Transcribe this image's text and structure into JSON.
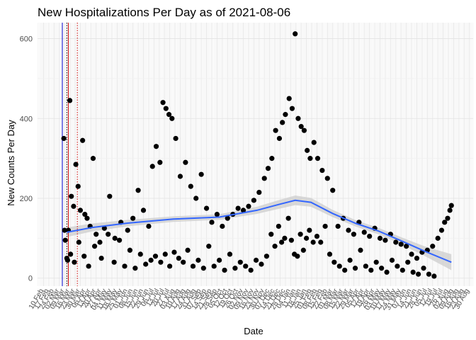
{
  "chart_data": {
    "type": "scatter",
    "title": "New Hospitalizations Per Day as of 2021-08-06",
    "xlabel": "Date",
    "ylabel": "New Counts Per Day",
    "ylim": [
      -20,
      640
    ],
    "y_ticks": [
      0,
      200,
      400,
      600
    ],
    "x_range": [
      "2020-02-02",
      "2021-09-04"
    ],
    "x_tick_labels": [
      "10 Feb",
      "17 Feb",
      "24 Feb",
      "02 Mar",
      "09 Mar",
      "16 Mar",
      "23 Mar",
      "30 Mar",
      "06 Apr",
      "13 Apr",
      "20 Apr",
      "27 Apr",
      "04 May",
      "11 May",
      "18 May",
      "25 May",
      "01 Jun",
      "08 Jun",
      "15 Jun",
      "22 Jun",
      "29 Jun",
      "06 Jul",
      "13 Jul",
      "20 Jul",
      "27 Jul",
      "03 Aug",
      "10 Aug",
      "17 Aug",
      "24 Aug",
      "31 Aug",
      "07 Sep",
      "14 Sep",
      "21 Sep",
      "28 Sep",
      "05 Oct",
      "12 Oct",
      "19 Oct",
      "26 Oct",
      "02 Nov",
      "09 Nov",
      "16 Nov",
      "23 Nov",
      "30 Nov",
      "07 Dec",
      "14 Dec",
      "21 Dec",
      "28 Dec",
      "04 Jan",
      "11 Jan",
      "18 Jan",
      "25 Jan",
      "01 Feb",
      "08 Feb",
      "15 Feb",
      "22 Feb",
      "01 Mar",
      "08 Mar",
      "15 Mar",
      "22 Mar",
      "29 Mar",
      "05 Apr",
      "12 Apr",
      "19 Apr",
      "26 Apr",
      "03 May",
      "10 May",
      "17 May",
      "24 May",
      "31 May",
      "07 Jun",
      "14 Jun",
      "21 Jun",
      "28 Jun",
      "05 Jul",
      "12 Jul",
      "19 Jul",
      "26 Jul",
      "02 Aug",
      "09 Aug",
      "16 Aug",
      "23 Aug",
      "30 Aug"
    ],
    "grid": true,
    "reference_lines": [
      {
        "date": "2020-03-06",
        "color": "#0000cc",
        "style": "solid"
      },
      {
        "date": "2020-03-12",
        "color": "#000000",
        "style": "dotted"
      },
      {
        "date": "2020-03-14",
        "color": "#cc0000",
        "style": "solid"
      },
      {
        "date": "2020-03-26",
        "color": "#cc0000",
        "style": "dotted"
      }
    ],
    "colors": {
      "points": "#000000",
      "trend": "#3366ff",
      "band": "#cccccc"
    },
    "trend": {
      "dates": [
        "2020-03-12",
        "2020-04-15",
        "2020-06-01",
        "2020-08-01",
        "2020-10-01",
        "2020-11-20",
        "2020-12-20",
        "2021-01-10",
        "2021-01-31",
        "2021-03-01",
        "2021-04-01",
        "2021-05-01",
        "2021-06-01",
        "2021-07-01",
        "2021-08-06"
      ],
      "values": [
        115,
        127,
        138,
        148,
        153,
        170,
        185,
        195,
        190,
        162,
        137,
        118,
        93,
        68,
        40
      ],
      "band_half_width": [
        12,
        10,
        8,
        7,
        7,
        9,
        11,
        12,
        11,
        9,
        8,
        8,
        9,
        12,
        20
      ]
    },
    "series": [
      {
        "x": [
          "2020-03-08",
          "2020-03-10",
          "2020-03-12",
          "2020-03-14",
          "2020-03-16",
          "2020-03-18",
          "2020-03-21",
          "2020-03-24",
          "2020-03-27",
          "2020-03-30",
          "2020-04-02",
          "2020-04-05",
          "2020-04-08",
          "2020-04-12",
          "2020-04-16",
          "2020-04-20",
          "2020-04-25",
          "2020-05-01",
          "2020-05-08",
          "2020-05-15",
          "2020-05-23",
          "2020-06-01",
          "2020-06-08",
          "2020-06-15",
          "2020-06-22",
          "2020-06-29",
          "2020-07-04",
          "2020-07-09",
          "2020-07-14",
          "2020-07-18",
          "2020-07-22",
          "2020-07-26",
          "2020-07-30",
          "2020-08-04",
          "2020-08-10",
          "2020-08-17",
          "2020-08-24",
          "2020-08-31",
          "2020-09-07",
          "2020-09-14",
          "2020-09-21",
          "2020-09-28",
          "2020-10-05",
          "2020-10-12",
          "2020-10-19",
          "2020-10-26",
          "2020-11-02",
          "2020-11-09",
          "2020-11-16",
          "2020-11-23",
          "2020-11-30",
          "2020-12-05",
          "2020-12-10",
          "2020-12-15",
          "2020-12-20",
          "2020-12-24",
          "2020-12-28",
          "2021-01-02",
          "2021-01-06",
          "2021-01-10",
          "2021-01-14",
          "2021-01-18",
          "2021-01-22",
          "2021-01-26",
          "2021-01-30",
          "2021-02-04",
          "2021-02-09",
          "2021-02-15",
          "2021-02-22",
          "2021-03-01",
          "2021-03-08",
          "2021-03-15",
          "2021-03-22",
          "2021-03-29",
          "2021-04-05",
          "2021-04-12",
          "2021-04-19",
          "2021-04-26",
          "2021-05-03",
          "2021-05-10",
          "2021-05-17",
          "2021-05-24",
          "2021-05-31",
          "2021-06-07",
          "2021-06-14",
          "2021-06-21",
          "2021-06-28",
          "2021-07-05",
          "2021-07-12",
          "2021-07-19",
          "2021-07-24",
          "2021-07-28",
          "2021-08-01",
          "2021-08-04",
          "2021-08-06"
        ],
        "y": [
          350,
          95,
          50,
          120,
          445,
          205,
          180,
          285,
          230,
          170,
          345,
          160,
          150,
          130,
          300,
          110,
          90,
          125,
          205,
          100,
          140,
          120,
          150,
          220,
          170,
          130,
          280,
          330,
          290,
          440,
          425,
          410,
          400,
          350,
          255,
          290,
          230,
          200,
          260,
          175,
          140,
          160,
          130,
          150,
          160,
          175,
          170,
          180,
          195,
          215,
          250,
          275,
          300,
          370,
          350,
          390,
          410,
          450,
          425,
          612,
          400,
          380,
          370,
          320,
          300,
          340,
          300,
          270,
          250,
          220,
          130,
          150,
          120,
          110,
          140,
          115,
          105,
          125,
          100,
          95,
          110,
          90,
          85,
          80,
          60,
          50,
          65,
          70,
          80,
          100,
          120,
          140,
          150,
          170,
          182
        ]
      },
      {
        "x": [
          "2020-03-09",
          "2020-03-13",
          "2020-03-17",
          "2020-03-22",
          "2020-03-28",
          "2020-04-04",
          "2020-04-10",
          "2020-04-18",
          "2020-04-27",
          "2020-05-06",
          "2020-05-14",
          "2020-05-21",
          "2020-05-28",
          "2020-06-04",
          "2020-06-11",
          "2020-06-18",
          "2020-06-25",
          "2020-07-02",
          "2020-07-08",
          "2020-07-15",
          "2020-07-21",
          "2020-07-27",
          "2020-08-02",
          "2020-08-08",
          "2020-08-14",
          "2020-08-20",
          "2020-08-27",
          "2020-09-03",
          "2020-09-10",
          "2020-09-17",
          "2020-09-24",
          "2020-10-01",
          "2020-10-08",
          "2020-10-15",
          "2020-10-22",
          "2020-10-29",
          "2020-11-05",
          "2020-11-12",
          "2020-11-19",
          "2020-11-26",
          "2020-12-03",
          "2020-12-09",
          "2020-12-14",
          "2020-12-19",
          "2020-12-23",
          "2020-12-27",
          "2021-01-01",
          "2021-01-05",
          "2021-01-09",
          "2021-01-13",
          "2021-01-17",
          "2021-01-21",
          "2021-01-25",
          "2021-01-29",
          "2021-02-03",
          "2021-02-08",
          "2021-02-13",
          "2021-02-19",
          "2021-02-25",
          "2021-03-03",
          "2021-03-10",
          "2021-03-17",
          "2021-03-24",
          "2021-03-31",
          "2021-04-07",
          "2021-04-14",
          "2021-04-21",
          "2021-04-28",
          "2021-05-05",
          "2021-05-12",
          "2021-05-19",
          "2021-05-26",
          "2021-06-02",
          "2021-06-09",
          "2021-06-16",
          "2021-06-23",
          "2021-06-30",
          "2021-07-07",
          "2021-07-14"
        ],
        "y": [
          120,
          45,
          60,
          40,
          90,
          55,
          30,
          80,
          50,
          110,
          40,
          95,
          30,
          70,
          25,
          60,
          35,
          45,
          55,
          40,
          60,
          30,
          65,
          50,
          40,
          70,
          30,
          45,
          25,
          80,
          30,
          45,
          20,
          60,
          25,
          40,
          30,
          20,
          45,
          35,
          55,
          110,
          80,
          130,
          90,
          100,
          150,
          95,
          60,
          55,
          110,
          70,
          100,
          120,
          90,
          105,
          90,
          130,
          60,
          40,
          30,
          20,
          45,
          25,
          70,
          30,
          20,
          40,
          25,
          15,
          45,
          30,
          20,
          40,
          15,
          10,
          25,
          10,
          5
        ]
      }
    ]
  }
}
